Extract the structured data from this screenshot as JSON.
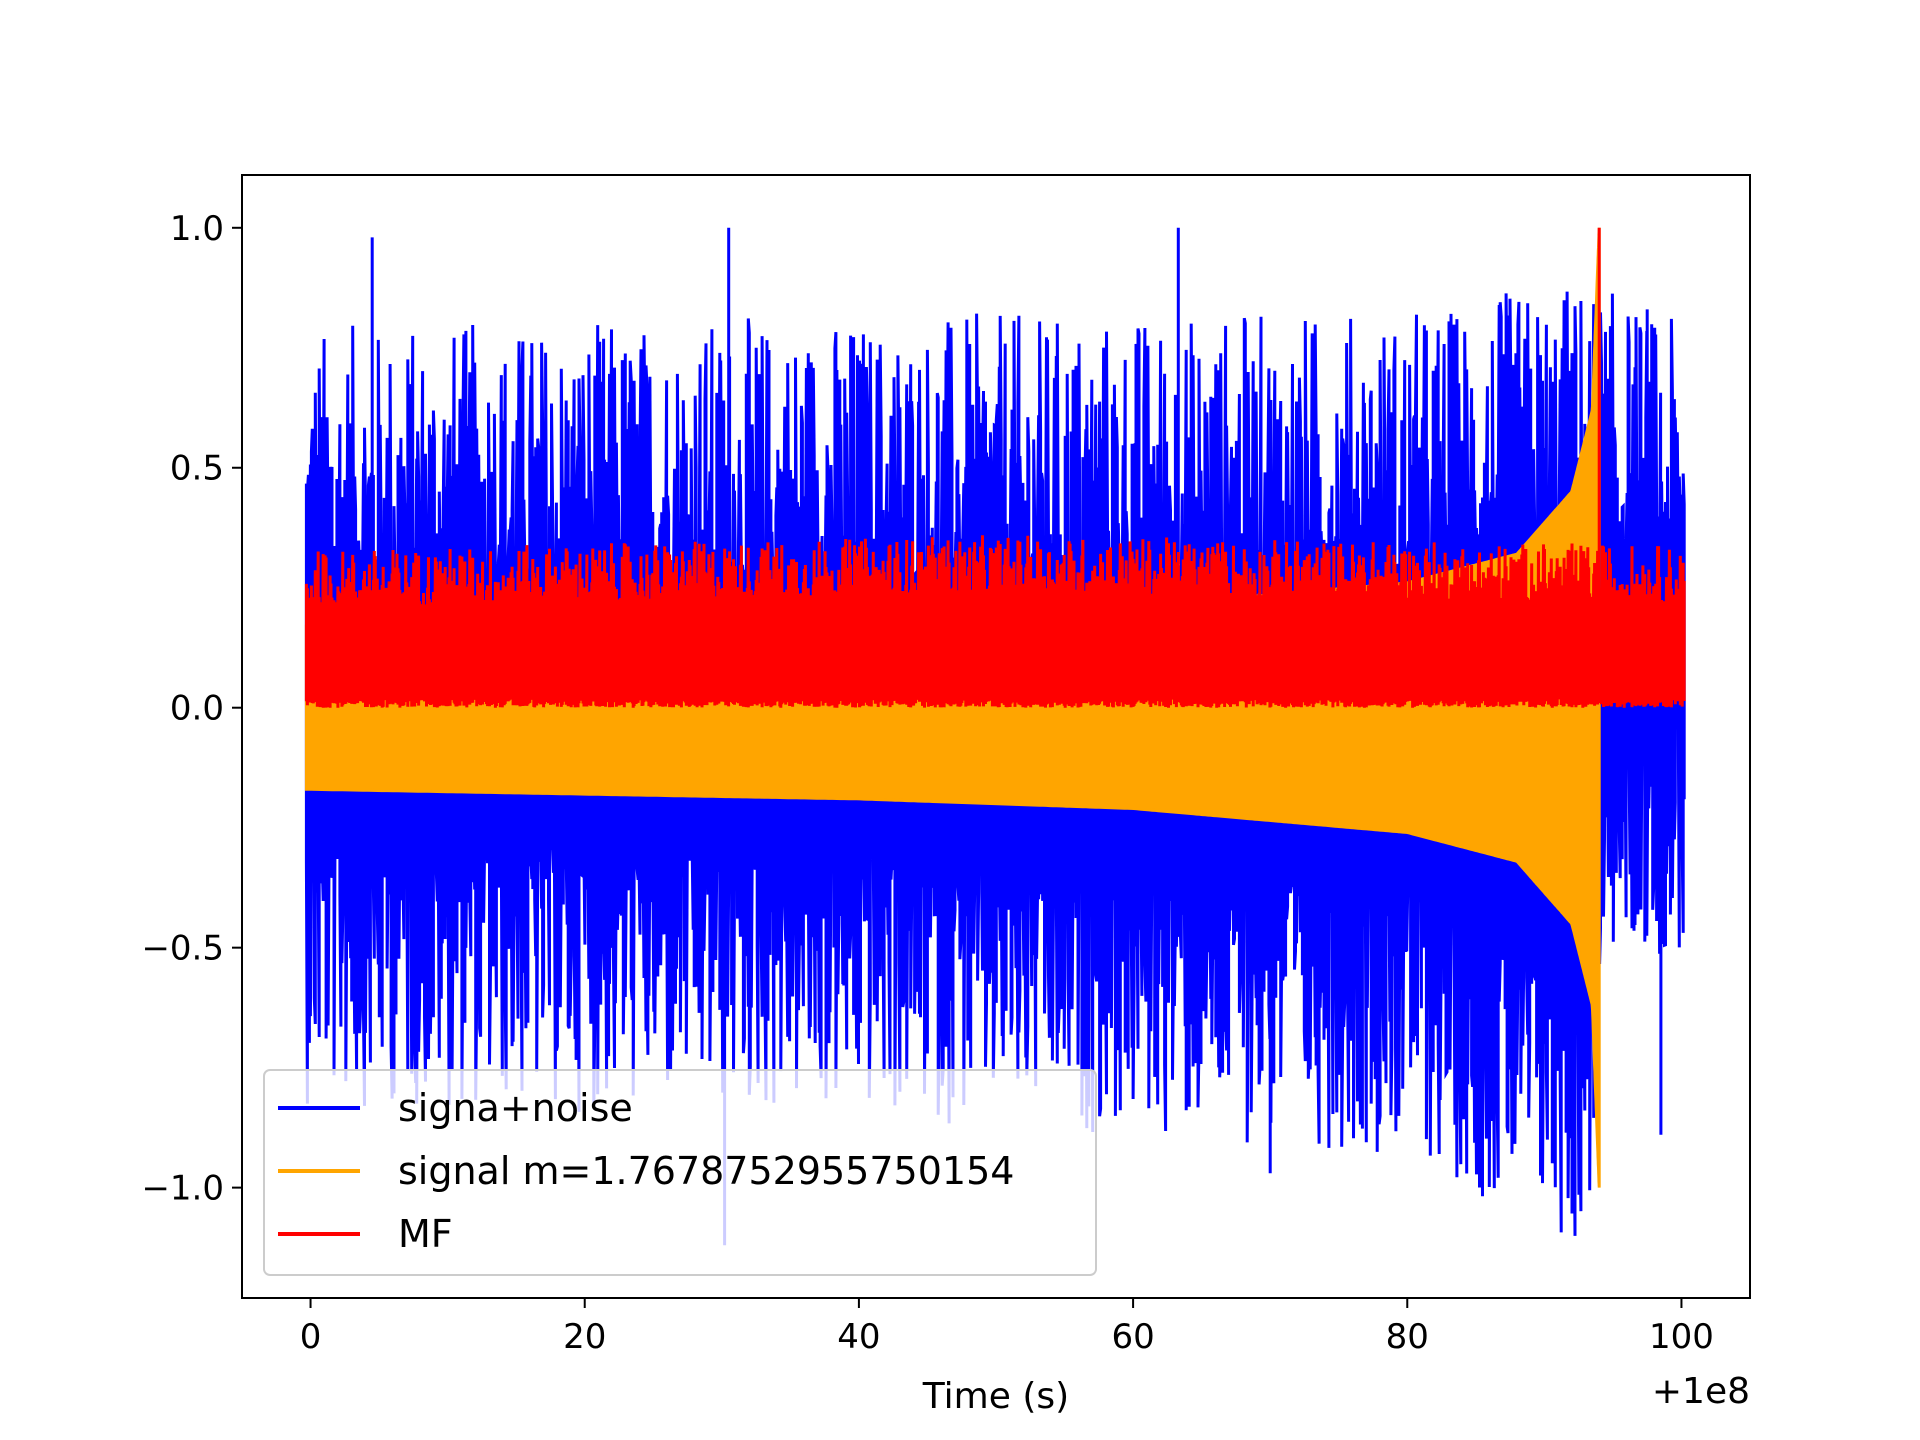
{
  "chart_data": {
    "type": "line",
    "title": "",
    "xlabel": "Time (s)",
    "ylabel": "",
    "x_offset_label": "+1e8",
    "xlim": [
      -5,
      105
    ],
    "ylim": [
      -1.23,
      1.11
    ],
    "x_ticks": [
      0,
      20,
      40,
      60,
      80,
      100
    ],
    "x_tick_labels": [
      "0",
      "20",
      "40",
      "60",
      "80",
      "100"
    ],
    "y_ticks": [
      1.0,
      0.5,
      0.0,
      -0.5,
      -1.0
    ],
    "y_tick_labels": [
      "1.0",
      "0.5",
      "0.0",
      "−0.5",
      "−1.0"
    ],
    "grid": false,
    "legend_position": "lower-left",
    "series": [
      {
        "name": "signa+noise",
        "color": "#0000ff",
        "x_range": [
          -0.3,
          100.2
        ],
        "peak_top": [
          [
            4.5,
            0.98
          ],
          [
            30.5,
            1.0
          ],
          [
            63.3,
            1.0
          ],
          [
            97.5,
            0.83
          ]
        ],
        "peak_bottom": [
          [
            30.2,
            -1.12
          ],
          [
            70.0,
            -0.97
          ],
          [
            98.5,
            -0.89
          ]
        ],
        "upper_band": [
          [
            0,
            0.25
          ],
          [
            40,
            0.27
          ],
          [
            80,
            0.28
          ],
          [
            93,
            0.35
          ],
          [
            100,
            0.25
          ]
        ],
        "lower_band": [
          [
            0,
            -0.18
          ],
          [
            40,
            -0.21
          ],
          [
            80,
            -0.28
          ],
          [
            93,
            -0.5
          ],
          [
            94.5,
            -0.02
          ],
          [
            100,
            -0.02
          ]
        ]
      },
      {
        "name": "signal m=1.7678752955750154",
        "color": "#ffa500",
        "x_range": [
          -0.3,
          94.0
        ],
        "envelope": [
          [
            0,
            0.17
          ],
          [
            20,
            0.18
          ],
          [
            40,
            0.19
          ],
          [
            60,
            0.21
          ],
          [
            80,
            0.26
          ],
          [
            88,
            0.32
          ],
          [
            92,
            0.45
          ],
          [
            93.5,
            0.62
          ],
          [
            94,
            1.0
          ]
        ],
        "min_value": -1.0
      },
      {
        "name": "MF",
        "color": "#ff0000",
        "x_range": [
          -0.3,
          100.2
        ],
        "band": [
          [
            0,
            0.0,
            0.25
          ],
          [
            50,
            0.0,
            0.28
          ],
          [
            100,
            0.0,
            0.26
          ]
        ],
        "peak": [
          94.0,
          1.0
        ]
      }
    ]
  }
}
